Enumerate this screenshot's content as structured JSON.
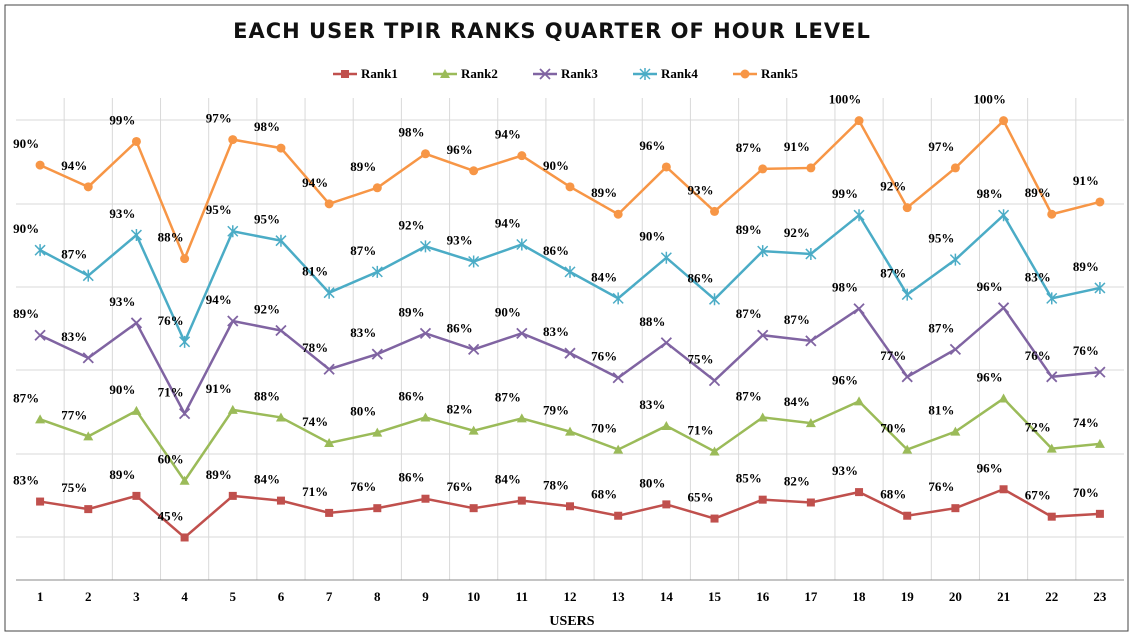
{
  "chart_data": {
    "type": "line",
    "stacked": true,
    "title": "EACH USER TPIR RANKS QUARTER OF HOUR LEVEL",
    "xlabel": "USERS",
    "categories": [
      "1",
      "2",
      "3",
      "4",
      "5",
      "6",
      "7",
      "8",
      "9",
      "10",
      "11",
      "12",
      "13",
      "14",
      "15",
      "16",
      "17",
      "18",
      "19",
      "20",
      "21",
      "22",
      "23"
    ],
    "ylim": [
      0,
      510
    ],
    "grid": true,
    "legend": "top",
    "series": [
      {
        "name": "Rank1",
        "color": "#c0504d",
        "marker": "square",
        "values": [
          83,
          75,
          89,
          45,
          89,
          84,
          71,
          76,
          86,
          76,
          84,
          78,
          68,
          80,
          65,
          85,
          82,
          93,
          68,
          76,
          96,
          67,
          70
        ],
        "value_labels": [
          "83%",
          "75%",
          "89%",
          "45%",
          "89%",
          "84%",
          "71%",
          "76%",
          "86%",
          "76%",
          "84%",
          "78%",
          "68%",
          "80%",
          "65%",
          "85%",
          "82%",
          "93%",
          "68%",
          "76%",
          "96%",
          "67%",
          "70%"
        ]
      },
      {
        "name": "Rank2",
        "color": "#9bbb59",
        "marker": "triangle",
        "values": [
          87,
          77,
          90,
          60,
          91,
          88,
          74,
          80,
          86,
          82,
          87,
          79,
          70,
          83,
          71,
          87,
          84,
          96,
          70,
          81,
          96,
          72,
          74
        ],
        "value_labels": [
          "87%",
          "77%",
          "90%",
          "60%",
          "91%",
          "88%",
          "74%",
          "80%",
          "86%",
          "82%",
          "87%",
          "79%",
          "70%",
          "83%",
          "71%",
          "87%",
          "84%",
          "96%",
          "70%",
          "81%",
          "96%",
          "72%",
          "74%"
        ]
      },
      {
        "name": "Rank3",
        "color": "#8064a2",
        "marker": "x",
        "values": [
          89,
          83,
          93,
          71,
          94,
          92,
          78,
          83,
          89,
          86,
          90,
          83,
          76,
          88,
          75,
          87,
          87,
          98,
          77,
          87,
          96,
          76,
          76
        ],
        "value_labels": [
          "89%",
          "83%",
          "93%",
          "71%",
          "94%",
          "92%",
          "78%",
          "83%",
          "89%",
          "86%",
          "90%",
          "83%",
          "76%",
          "88%",
          "75%",
          "87%",
          "87%",
          "98%",
          "77%",
          "87%",
          "96%",
          "76%",
          "76%"
        ]
      },
      {
        "name": "Rank4",
        "color": "#4bacc6",
        "marker": "star",
        "values": [
          90,
          87,
          93,
          76,
          95,
          95,
          81,
          87,
          92,
          93,
          94,
          86,
          84,
          90,
          86,
          89,
          92,
          99,
          87,
          95,
          98,
          83,
          89
        ],
        "value_labels": [
          "90%",
          "87%",
          "93%",
          "76%",
          "95%",
          "95%",
          "81%",
          "87%",
          "92%",
          "93%",
          "94%",
          "86%",
          "84%",
          "90%",
          "86%",
          "89%",
          "92%",
          "99%",
          "87%",
          "95%",
          "98%",
          "83%",
          "89%"
        ]
      },
      {
        "name": "Rank5",
        "color": "#f79646",
        "marker": "circle",
        "values": [
          90,
          94,
          99,
          88,
          97,
          98,
          94,
          89,
          98,
          96,
          94,
          90,
          89,
          96,
          93,
          87,
          91,
          100,
          92,
          97,
          100,
          89,
          91
        ],
        "value_labels": [
          "90%",
          "94%",
          "99%",
          "88%",
          "97%",
          "98%",
          "94%",
          "89%",
          "98%",
          "96%",
          "94%",
          "90%",
          "89%",
          "96%",
          "93%",
          "87%",
          "91%",
          "100%",
          "92%",
          "97%",
          "100%",
          "89%",
          "91%"
        ]
      }
    ]
  }
}
